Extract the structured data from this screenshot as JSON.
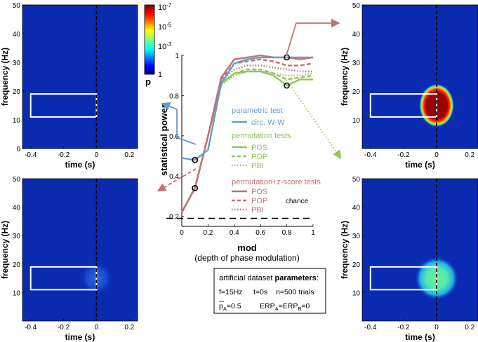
{
  "colors": {
    "parametric": "#6a9ac8",
    "permutation": "#92c45a",
    "zscore": "#c07272",
    "heat_background": "#0a2bb0",
    "dashed_time_zero": "#000000"
  },
  "chart_data": [
    {
      "id": "heatmap-top-left",
      "type": "heatmap",
      "xlabel": "time (s)",
      "ylabel": "frequency (Hz)",
      "xlim": [
        -0.45,
        0.25
      ],
      "ylim": [
        0,
        50
      ],
      "xticks": [
        "-0.4",
        "-0.2",
        "0",
        "0.2"
      ],
      "yticks": [
        "0",
        "10",
        "20",
        "30",
        "40",
        "50"
      ],
      "roi": {
        "t0": -0.4,
        "t1": 0.0,
        "f0": 11,
        "f1": 19
      },
      "blob": {
        "level": "none",
        "t_center": 0.0,
        "f_center": 15
      }
    },
    {
      "id": "heatmap-top-right",
      "type": "heatmap",
      "xlabel": "time (s)",
      "ylabel": "frequency (Hz)",
      "xlim": [
        -0.45,
        0.25
      ],
      "ylim": [
        0,
        50
      ],
      "xticks": [
        "-0.4",
        "-0.2",
        "0",
        "0.2"
      ],
      "yticks": [
        "10",
        "20",
        "30",
        "40",
        "50"
      ],
      "roi": {
        "t0": -0.4,
        "t1": 0.0,
        "f0": 11,
        "f1": 19
      },
      "blob": {
        "level": "strong",
        "t_center": 0.0,
        "f_center": 15
      }
    },
    {
      "id": "heatmap-bottom-left",
      "type": "heatmap",
      "xlabel": "time (s)",
      "ylabel": "frequency (Hz)",
      "xlim": [
        -0.45,
        0.25
      ],
      "ylim": [
        0,
        50
      ],
      "xticks": [
        "-0.4",
        "-0.2",
        "0",
        "0.2"
      ],
      "yticks": [
        "10",
        "20",
        "30",
        "40",
        "50"
      ],
      "roi": {
        "t0": -0.4,
        "t1": 0.0,
        "f0": 11,
        "f1": 19
      },
      "blob": {
        "level": "faint",
        "t_center": 0.0,
        "f_center": 15
      }
    },
    {
      "id": "heatmap-bottom-right",
      "type": "heatmap",
      "xlabel": "time (s)",
      "ylabel": "frequency (Hz)",
      "xlim": [
        -0.45,
        0.25
      ],
      "ylim": [
        0,
        50
      ],
      "xticks": [
        "-0.4",
        "-0.2",
        "0",
        "0.2"
      ],
      "yticks": [
        "10",
        "20",
        "30",
        "40",
        "50"
      ],
      "roi": {
        "t0": -0.4,
        "t1": 0.0,
        "f0": 11,
        "f1": 19
      },
      "blob": {
        "level": "medium",
        "t_center": 0.0,
        "f_center": 15
      }
    },
    {
      "id": "power-curves",
      "type": "line",
      "ylabel": "statistical power",
      "xlabel": "mod",
      "xlabel_sub": "(depth of phase modulation)",
      "xlim": [
        0,
        1
      ],
      "ylim": [
        0.15,
        1.0
      ],
      "xticks": [
        "0",
        "0.2",
        "0.4",
        "0.6",
        "0.8",
        "1"
      ],
      "yticks": [
        "0.2",
        "0.4",
        "0.6",
        "0.8",
        "1"
      ],
      "x": [
        0,
        0.1,
        0.2,
        0.3,
        0.4,
        0.5,
        0.6,
        0.7,
        0.8,
        0.9,
        1.0
      ],
      "chance_level": 0.19,
      "chance_label": "chance",
      "series": [
        {
          "name": "circ. W-W",
          "group": "parametric",
          "style": "solid",
          "values": [
            0.49,
            0.48,
            0.53,
            0.86,
            0.96,
            0.98,
            0.99,
            0.99,
            0.99,
            0.99,
            0.99
          ]
        },
        {
          "name": "POS",
          "group": "permutation",
          "style": "solid",
          "values": [
            0.22,
            0.34,
            0.6,
            0.86,
            0.91,
            0.92,
            0.92,
            0.9,
            0.85,
            0.88,
            0.88
          ]
        },
        {
          "name": "POP",
          "group": "permutation",
          "style": "dashed",
          "values": [
            0.22,
            0.34,
            0.6,
            0.86,
            0.91,
            0.93,
            0.93,
            0.91,
            0.88,
            0.89,
            0.9
          ]
        },
        {
          "name": "PBI",
          "group": "permutation",
          "style": "dotted",
          "values": [
            0.22,
            0.34,
            0.6,
            0.85,
            0.9,
            0.92,
            0.92,
            0.91,
            0.9,
            0.9,
            0.91
          ]
        },
        {
          "name": "POS",
          "group": "zscore",
          "style": "solid",
          "values": [
            0.22,
            0.34,
            0.6,
            0.89,
            0.98,
            0.99,
            1.0,
            0.99,
            0.99,
            0.98,
            0.99
          ]
        },
        {
          "name": "POP",
          "group": "zscore",
          "style": "dashed",
          "values": [
            0.22,
            0.34,
            0.6,
            0.88,
            0.96,
            0.97,
            0.98,
            0.97,
            0.95,
            0.95,
            0.96
          ]
        },
        {
          "name": "PBI",
          "group": "zscore",
          "style": "dotted",
          "values": [
            0.22,
            0.34,
            0.6,
            0.87,
            0.93,
            0.95,
            0.95,
            0.94,
            0.93,
            0.92,
            0.92
          ]
        }
      ],
      "markers": [
        {
          "x": 0.1,
          "y": 0.48,
          "target": "heatmap-top-left"
        },
        {
          "x": 0.1,
          "y": 0.34,
          "target": "heatmap-bottom-left"
        },
        {
          "x": 0.8,
          "y": 0.99,
          "target": "heatmap-top-right"
        },
        {
          "x": 0.8,
          "y": 0.85,
          "target": "heatmap-bottom-right"
        }
      ]
    }
  ],
  "legend": {
    "parametric_title": "parametric test",
    "parametric_items": [
      "circ. W-W"
    ],
    "permutation_title": "permutation tests",
    "permutation_items": [
      "POS",
      "POP",
      "PBI"
    ],
    "zscore_title": "permutation+z-score tests",
    "zscore_items": [
      "POS",
      "POP",
      "PBI"
    ]
  },
  "colorbar": {
    "label": "p",
    "ticks": [
      "10",
      "10",
      "10",
      "1"
    ],
    "exponents": [
      "-7",
      "-5",
      "-3",
      ""
    ]
  },
  "params_box": {
    "title_plain": "artificial dataset ",
    "title_bold": "parameters",
    "title_colon": ":",
    "freq": "f=15Hz",
    "time": "t=0s",
    "trials": "n=500 trials",
    "pa_sym": "p",
    "pa_sub": "A",
    "pa_val": "=0.5",
    "erp_a": "ERP",
    "erp_a_sub": "A",
    "erp_mid": "=ERP",
    "erp_b_sub": "B",
    "erp_end": "=0"
  }
}
